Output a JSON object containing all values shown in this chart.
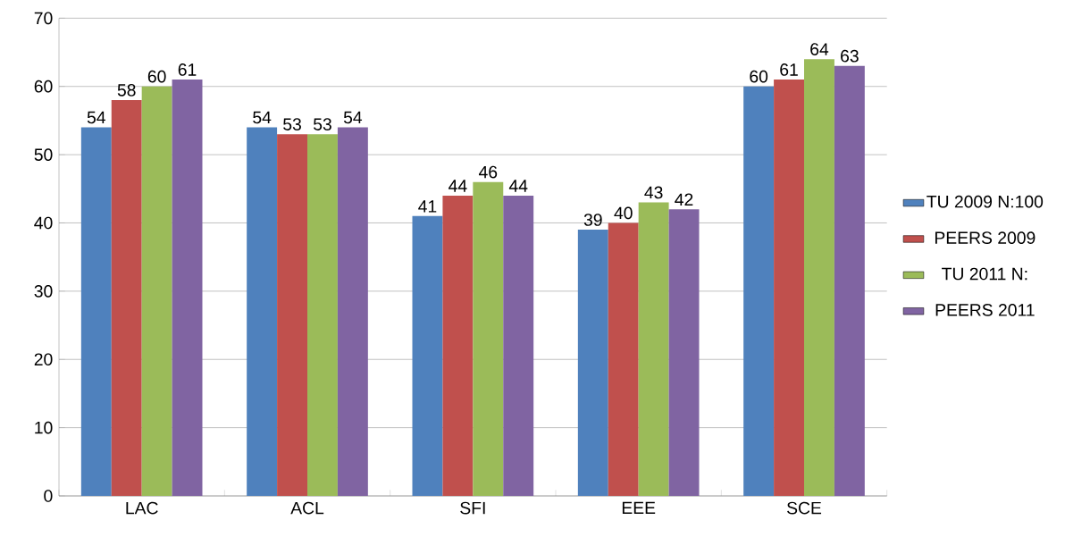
{
  "chart_data": {
    "type": "bar",
    "categories": [
      "LAC",
      "ACL",
      "SFI",
      "EEE",
      "SCE"
    ],
    "series": [
      {
        "name": "TU 2009 N:100",
        "color": "#4f81bd",
        "values": [
          54,
          54,
          41,
          39,
          60
        ]
      },
      {
        "name": "PEERS 2009",
        "color": "#c0504d",
        "values": [
          58,
          53,
          44,
          40,
          61
        ]
      },
      {
        "name": "TU 2011 N:",
        "color": "#9bbb59",
        "values": [
          60,
          53,
          46,
          43,
          64
        ]
      },
      {
        "name": "PEERS 2011",
        "color": "#8064a2",
        "values": [
          61,
          54,
          44,
          42,
          63
        ]
      }
    ],
    "ylim": [
      0,
      70
    ],
    "yticks": [
      0,
      10,
      20,
      30,
      40,
      50,
      60,
      70
    ],
    "grid": "y",
    "legend": "right",
    "data_labels": true
  }
}
